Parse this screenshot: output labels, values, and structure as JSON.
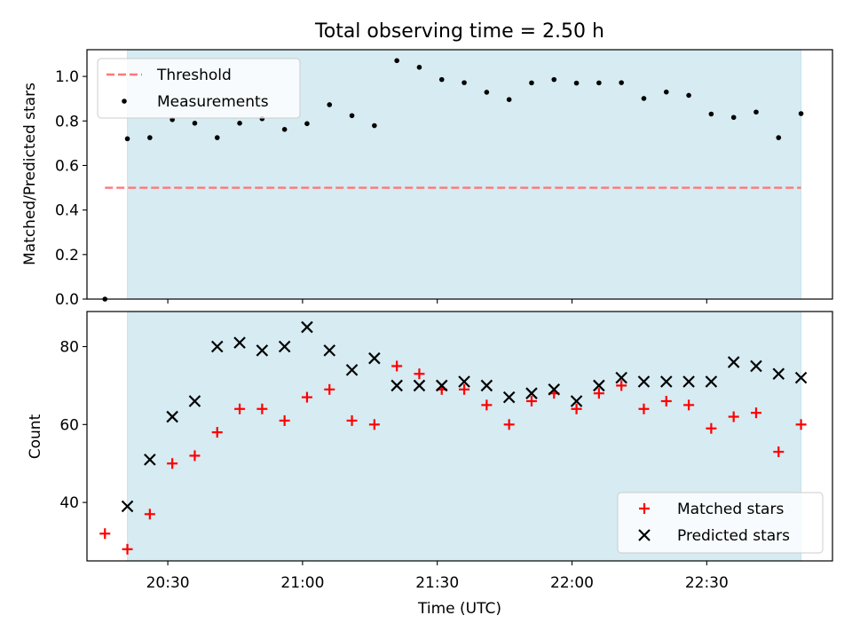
{
  "figure": {
    "title": "Total observing time = 2.50 h",
    "xlabel": "Time (UTC)"
  },
  "chart_data": [
    {
      "type": "scatter",
      "panel": "top",
      "title": "Total observing time = 2.50 h",
      "ylabel": "Matched/Predicted stars",
      "xlim": [
        "20:12",
        "22:58"
      ],
      "ylim": [
        0,
        1.12
      ],
      "yticks": [
        0.0,
        0.2,
        0.4,
        0.6,
        0.8,
        1.0
      ],
      "ytick_labels": [
        "0.0",
        "0.2",
        "0.4",
        "0.6",
        "0.8",
        "1.0"
      ],
      "shaded_span": {
        "from": "20:21",
        "to": "22:51",
        "color": "#add8e6"
      },
      "threshold": {
        "name": "Threshold",
        "value": 0.5,
        "from": "20:16",
        "to": "22:51",
        "color": "#ff7777"
      },
      "legend_position": "upper left",
      "series": [
        {
          "name": "Measurements",
          "marker": "dot",
          "color": "#000000",
          "x": [
            "20:16",
            "20:21",
            "20:26",
            "20:31",
            "20:36",
            "20:41",
            "20:46",
            "20:51",
            "20:56",
            "21:01",
            "21:06",
            "21:11",
            "21:16",
            "21:21",
            "21:26",
            "21:31",
            "21:36",
            "21:41",
            "21:46",
            "21:51",
            "21:56",
            "22:01",
            "22:06",
            "22:11",
            "22:16",
            "22:21",
            "22:26",
            "22:31",
            "22:36",
            "22:41",
            "22:46",
            "22:51"
          ],
          "y": [
            0.0,
            0.72,
            0.725,
            0.806,
            0.79,
            0.725,
            0.79,
            0.81,
            0.762,
            0.788,
            0.873,
            0.824,
            0.779,
            1.071,
            1.041,
            0.986,
            0.972,
            0.929,
            0.896,
            0.971,
            0.986,
            0.97,
            0.971,
            0.972,
            0.901,
            0.93,
            0.915,
            0.831,
            0.816,
            0.84,
            0.725,
            0.833
          ]
        }
      ]
    },
    {
      "type": "scatter",
      "panel": "bottom",
      "xlabel": "Time (UTC)",
      "ylabel": "Count",
      "xlim": [
        "20:12",
        "22:58"
      ],
      "ylim": [
        25,
        89
      ],
      "xticks": [
        "20:30",
        "21:00",
        "21:30",
        "22:00",
        "22:30"
      ],
      "yticks": [
        40,
        60,
        80
      ],
      "ytick_labels": [
        "40",
        "60",
        "80"
      ],
      "shaded_span": {
        "from": "20:21",
        "to": "22:51",
        "color": "#add8e6"
      },
      "legend_position": "lower right",
      "series": [
        {
          "name": "Matched stars",
          "marker": "plus",
          "color": "#ff0000",
          "x": [
            "20:16",
            "20:21",
            "20:26",
            "20:31",
            "20:36",
            "20:41",
            "20:46",
            "20:51",
            "20:56",
            "21:01",
            "21:06",
            "21:11",
            "21:16",
            "21:21",
            "21:26",
            "21:31",
            "21:36",
            "21:41",
            "21:46",
            "21:51",
            "21:56",
            "22:01",
            "22:06",
            "22:11",
            "22:16",
            "22:21",
            "22:26",
            "22:31",
            "22:36",
            "22:41",
            "22:46",
            "22:51"
          ],
          "y": [
            32,
            28,
            37,
            50,
            52,
            58,
            64,
            64,
            61,
            67,
            69,
            61,
            60,
            75,
            73,
            69,
            69,
            65,
            60,
            66,
            68,
            64,
            68,
            70,
            64,
            66,
            65,
            59,
            62,
            63,
            53,
            60
          ]
        },
        {
          "name": "Predicted stars",
          "marker": "x",
          "color": "#000000",
          "x": [
            "20:21",
            "20:26",
            "20:31",
            "20:36",
            "20:41",
            "20:46",
            "20:51",
            "20:56",
            "21:01",
            "21:06",
            "21:11",
            "21:16",
            "21:21",
            "21:26",
            "21:31",
            "21:36",
            "21:41",
            "21:46",
            "21:51",
            "21:56",
            "22:01",
            "22:06",
            "22:11",
            "22:16",
            "22:21",
            "22:26",
            "22:31",
            "22:36",
            "22:41",
            "22:46",
            "22:51"
          ],
          "y": [
            39,
            51,
            62,
            66,
            80,
            81,
            79,
            80,
            85,
            79,
            74,
            77,
            70,
            70,
            70,
            71,
            70,
            67,
            68,
            69,
            66,
            70,
            72,
            71,
            71,
            71,
            71,
            76,
            75,
            73,
            72
          ]
        }
      ]
    }
  ]
}
